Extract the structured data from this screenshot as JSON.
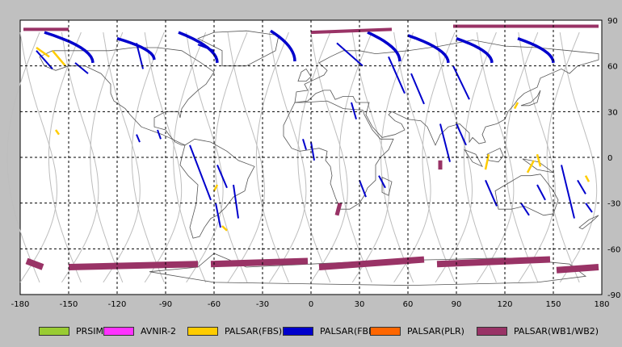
{
  "map": {
    "x_axis_ticks": [
      "-180",
      "-150",
      "-120",
      "-90",
      "-60",
      "-30",
      "0",
      "30",
      "60",
      "90",
      "120",
      "150",
      "180"
    ],
    "y_axis_ticks": [
      "90",
      "60",
      "30",
      "0",
      "-30",
      "-60",
      "-90"
    ],
    "colors": {
      "background": "#c0c0c0",
      "plot": "#ffffff",
      "gridline": "#000000",
      "orbit_track": "#bdbdbd",
      "coastline": "#555555"
    }
  },
  "legend": [
    {
      "label": "PRSIM",
      "color": "#99cc33"
    },
    {
      "label": "AVNIR-2",
      "color": "#ff33ff"
    },
    {
      "label": "PALSAR(FBS)",
      "color": "#ffcc00"
    },
    {
      "label": "PALSAR(FBD)",
      "color": "#0000cc"
    },
    {
      "label": "PALSAR(PLR)",
      "color": "#ff6600"
    },
    {
      "label": "PALSAR(WB1/WB2)",
      "color": "#993366"
    }
  ]
}
